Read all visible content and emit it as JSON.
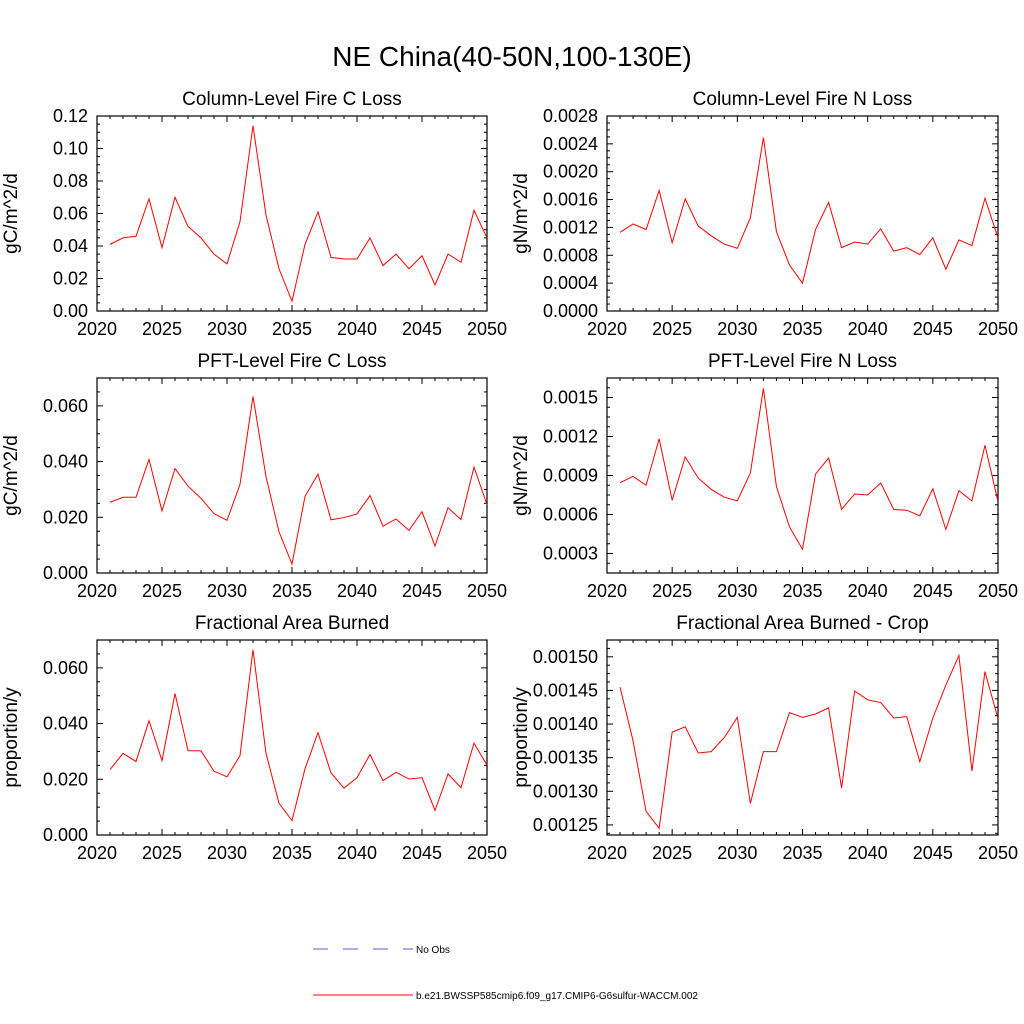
{
  "figure": {
    "title": "NE China(40-50N,100-130E)",
    "legend": [
      {
        "label": "No Obs",
        "color": "#5b5bd6",
        "dashed": true
      },
      {
        "label": "b.e21.BWSSP585cmip6.f09_g17.CMIP6-G6sulfur-WACCM.002",
        "color": "#ff0000",
        "dashed": false
      }
    ]
  },
  "chart_data": [
    {
      "type": "line",
      "title": "Column-Level Fire C Loss",
      "xlabel": "",
      "ylabel": "gC/m^2/d",
      "xlim": [
        2020,
        2050
      ],
      "ylim": [
        0,
        0.12
      ],
      "xticks": [
        2020,
        2025,
        2030,
        2035,
        2040,
        2045,
        2050
      ],
      "xtick_labels": [
        "2020",
        "2025",
        "2030",
        "2035",
        "2040",
        "2045",
        "2050"
      ],
      "yticks": [
        0,
        0.02,
        0.04,
        0.06,
        0.08,
        0.1,
        0.12
      ],
      "ytick_labels": [
        "0.00",
        "0.02",
        "0.04",
        "0.06",
        "0.08",
        "0.10",
        "0.12"
      ],
      "x": [
        2021,
        2022,
        2023,
        2024,
        2025,
        2026,
        2027,
        2028,
        2029,
        2030,
        2031,
        2032,
        2033,
        2034,
        2035,
        2036,
        2037,
        2038,
        2039,
        2040,
        2041,
        2042,
        2043,
        2044,
        2045,
        2046,
        2047,
        2048,
        2049,
        2050
      ],
      "series": [
        {
          "color": "#ff0000",
          "values": [
            0.041,
            0.045,
            0.046,
            0.069,
            0.039,
            0.07,
            0.052,
            0.045,
            0.035,
            0.029,
            0.055,
            0.114,
            0.059,
            0.026,
            0.006,
            0.041,
            0.061,
            0.033,
            0.032,
            0.032,
            0.045,
            0.028,
            0.035,
            0.026,
            0.034,
            0.016,
            0.035,
            0.03,
            0.062,
            0.045
          ]
        }
      ]
    },
    {
      "type": "line",
      "title": "Column-Level Fire N Loss",
      "xlabel": "",
      "ylabel": "gN/m^2/d",
      "xlim": [
        2020,
        2050
      ],
      "ylim": [
        0,
        0.0028
      ],
      "xticks": [
        2020,
        2025,
        2030,
        2035,
        2040,
        2045,
        2050
      ],
      "xtick_labels": [
        "2020",
        "2025",
        "2030",
        "2035",
        "2040",
        "2045",
        "2050"
      ],
      "yticks": [
        0,
        0.0004,
        0.0008,
        0.0012,
        0.0016,
        0.002,
        0.0024,
        0.0028
      ],
      "ytick_labels": [
        "0.0000",
        "0.0004",
        "0.0008",
        "0.0012",
        "0.0016",
        "0.0020",
        "0.0024",
        "0.0028"
      ],
      "x": [
        2021,
        2022,
        2023,
        2024,
        2025,
        2026,
        2027,
        2028,
        2029,
        2030,
        2031,
        2032,
        2033,
        2034,
        2035,
        2036,
        2037,
        2038,
        2039,
        2040,
        2041,
        2042,
        2043,
        2044,
        2045,
        2046,
        2047,
        2048,
        2049,
        2050
      ],
      "series": [
        {
          "color": "#ff0000",
          "values": [
            0.00113,
            0.00125,
            0.00117,
            0.00173,
            0.00098,
            0.00161,
            0.00122,
            0.00108,
            0.00096,
            0.0009,
            0.00134,
            0.00249,
            0.00114,
            0.00066,
            0.0004,
            0.00117,
            0.00156,
            0.00091,
            0.00099,
            0.00096,
            0.00118,
            0.00086,
            0.00091,
            0.00081,
            0.00105,
            0.0006,
            0.00102,
            0.00094,
            0.00162,
            0.00105
          ]
        }
      ]
    },
    {
      "type": "line",
      "title": "PFT-Level Fire C Loss",
      "xlabel": "",
      "ylabel": "gC/m^2/d",
      "xlim": [
        2020,
        2050
      ],
      "ylim": [
        0,
        0.07
      ],
      "xticks": [
        2020,
        2025,
        2030,
        2035,
        2040,
        2045,
        2050
      ],
      "xtick_labels": [
        "2020",
        "2025",
        "2030",
        "2035",
        "2040",
        "2045",
        "2050"
      ],
      "yticks": [
        0,
        0.02,
        0.04,
        0.06
      ],
      "ytick_labels": [
        "0.000",
        "0.020",
        "0.040",
        "0.060"
      ],
      "x": [
        2021,
        2022,
        2023,
        2024,
        2025,
        2026,
        2027,
        2028,
        2029,
        2030,
        2031,
        2032,
        2033,
        2034,
        2035,
        2036,
        2037,
        2038,
        2039,
        2040,
        2041,
        2042,
        2043,
        2044,
        2045,
        2046,
        2047,
        2048,
        2049,
        2050
      ],
      "series": [
        {
          "color": "#ff0000",
          "values": [
            0.0254,
            0.0272,
            0.0272,
            0.0408,
            0.0223,
            0.0375,
            0.0312,
            0.0268,
            0.0213,
            0.0189,
            0.0318,
            0.0634,
            0.0346,
            0.0148,
            0.0032,
            0.0275,
            0.0355,
            0.0191,
            0.0199,
            0.0212,
            0.0278,
            0.0168,
            0.0194,
            0.0153,
            0.022,
            0.0097,
            0.0234,
            0.0192,
            0.038,
            0.0245
          ]
        }
      ]
    },
    {
      "type": "line",
      "title": "PFT-Level Fire N Loss",
      "xlabel": "",
      "ylabel": "gN/m^2/d",
      "xlim": [
        2020,
        2050
      ],
      "ylim": [
        0.00015,
        0.00165
      ],
      "xticks": [
        2020,
        2025,
        2030,
        2035,
        2040,
        2045,
        2050
      ],
      "xtick_labels": [
        "2020",
        "2025",
        "2030",
        "2035",
        "2040",
        "2045",
        "2050"
      ],
      "yticks": [
        0.0003,
        0.0006,
        0.0009,
        0.0012,
        0.0015
      ],
      "ytick_labels": [
        "0.0003",
        "0.0006",
        "0.0009",
        "0.0012",
        "0.0015"
      ],
      "x": [
        2021,
        2022,
        2023,
        2024,
        2025,
        2026,
        2027,
        2028,
        2029,
        2030,
        2031,
        2032,
        2033,
        2034,
        2035,
        2036,
        2037,
        2038,
        2039,
        2040,
        2041,
        2042,
        2043,
        2044,
        2045,
        2046,
        2047,
        2048,
        2049,
        2050
      ],
      "series": [
        {
          "color": "#ff0000",
          "values": [
            0.000845,
            0.000893,
            0.000825,
            0.001183,
            0.00071,
            0.001043,
            0.00088,
            0.000793,
            0.000733,
            0.000705,
            0.00092,
            0.00157,
            0.000815,
            0.000505,
            0.000333,
            0.00091,
            0.001035,
            0.00064,
            0.000758,
            0.00075,
            0.000843,
            0.000638,
            0.000633,
            0.00059,
            0.000798,
            0.000485,
            0.000783,
            0.000705,
            0.001133,
            0.0007
          ]
        }
      ]
    },
    {
      "type": "line",
      "title": "Fractional Area Burned",
      "xlabel": "",
      "ylabel": "proportion/y",
      "xlim": [
        2020,
        2050
      ],
      "ylim": [
        0,
        0.07
      ],
      "xticks": [
        2020,
        2025,
        2030,
        2035,
        2040,
        2045,
        2050
      ],
      "xtick_labels": [
        "2020",
        "2025",
        "2030",
        "2035",
        "2040",
        "2045",
        "2050"
      ],
      "yticks": [
        0,
        0.02,
        0.04,
        0.06
      ],
      "ytick_labels": [
        "0.000",
        "0.020",
        "0.040",
        "0.060"
      ],
      "x": [
        2021,
        2022,
        2023,
        2024,
        2025,
        2026,
        2027,
        2028,
        2029,
        2030,
        2031,
        2032,
        2033,
        2034,
        2035,
        2036,
        2037,
        2038,
        2039,
        2040,
        2041,
        2042,
        2043,
        2044,
        2045,
        2046,
        2047,
        2048,
        2049,
        2050
      ],
      "series": [
        {
          "color": "#ff0000",
          "values": [
            0.0235,
            0.0293,
            0.0264,
            0.041,
            0.0267,
            0.0508,
            0.0303,
            0.0302,
            0.0229,
            0.0209,
            0.0285,
            0.0665,
            0.0293,
            0.0114,
            0.0052,
            0.0238,
            0.0367,
            0.0223,
            0.0168,
            0.0206,
            0.0289,
            0.0195,
            0.0225,
            0.0201,
            0.0206,
            0.0088,
            0.0219,
            0.017,
            0.033,
            0.0251
          ]
        }
      ]
    },
    {
      "type": "line",
      "title": "Fractional Area Burned - Crop",
      "xlabel": "",
      "ylabel": "proportion/y",
      "xlim": [
        2020,
        2050
      ],
      "ylim": [
        0.001235,
        0.001525
      ],
      "xticks": [
        2020,
        2025,
        2030,
        2035,
        2040,
        2045,
        2050
      ],
      "xtick_labels": [
        "2020",
        "2025",
        "2030",
        "2035",
        "2040",
        "2045",
        "2050"
      ],
      "yticks": [
        0.00125,
        0.0013,
        0.00135,
        0.0014,
        0.00145,
        0.0015
      ],
      "ytick_labels": [
        "0.00125",
        "0.00130",
        "0.00135",
        "0.00140",
        "0.00145",
        "0.00150"
      ],
      "x": [
        2021,
        2022,
        2023,
        2024,
        2025,
        2026,
        2027,
        2028,
        2029,
        2030,
        2031,
        2032,
        2033,
        2034,
        2035,
        2036,
        2037,
        2038,
        2039,
        2040,
        2041,
        2042,
        2043,
        2044,
        2045,
        2046,
        2047,
        2048,
        2049,
        2050
      ],
      "series": [
        {
          "color": "#ff0000",
          "values": [
            0.001455,
            0.001375,
            0.00127,
            0.001245,
            0.001388,
            0.001396,
            0.001357,
            0.001359,
            0.00138,
            0.00141,
            0.001282,
            0.001359,
            0.001359,
            0.001417,
            0.00141,
            0.001415,
            0.001424,
            0.001305,
            0.001449,
            0.001436,
            0.001432,
            0.001409,
            0.001411,
            0.001344,
            0.001409,
            0.001458,
            0.001502,
            0.00133,
            0.001478,
            0.001408
          ]
        }
      ]
    }
  ]
}
